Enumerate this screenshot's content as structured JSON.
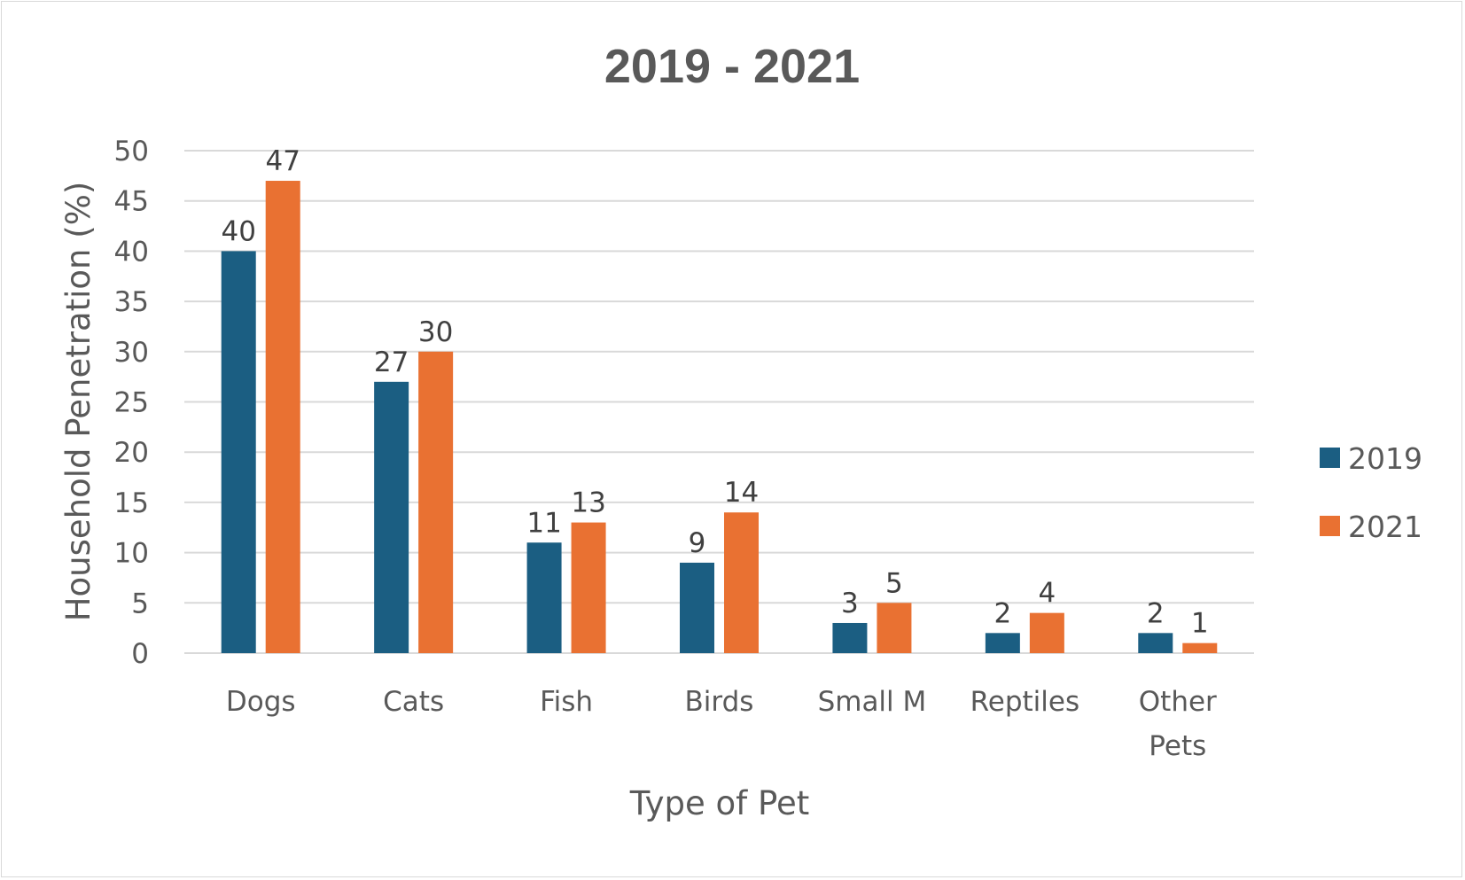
{
  "chart_data": {
    "type": "bar",
    "title": "2019 - 2021",
    "xlabel": "Type of Pet",
    "ylabel": "Household Penetration (%)",
    "categories": [
      [
        "Dogs"
      ],
      [
        "Cats"
      ],
      [
        "Fish"
      ],
      [
        "Birds"
      ],
      [
        "Small M"
      ],
      [
        "Reptiles"
      ],
      [
        "Other",
        "Pets"
      ]
    ],
    "series": [
      {
        "name": "2019",
        "color": "#1b5e82",
        "values": [
          40,
          27,
          11,
          9,
          3,
          2,
          2
        ]
      },
      {
        "name": "2021",
        "color": "#e97132",
        "values": [
          47,
          30,
          13,
          14,
          5,
          4,
          1
        ]
      }
    ],
    "ylim": [
      0,
      50
    ],
    "yticks": [
      0,
      5,
      10,
      15,
      20,
      25,
      30,
      35,
      40,
      45,
      50
    ],
    "grid": true,
    "gridColor": "#d9d9d9",
    "legend_position": "right",
    "data_labels": true
  }
}
